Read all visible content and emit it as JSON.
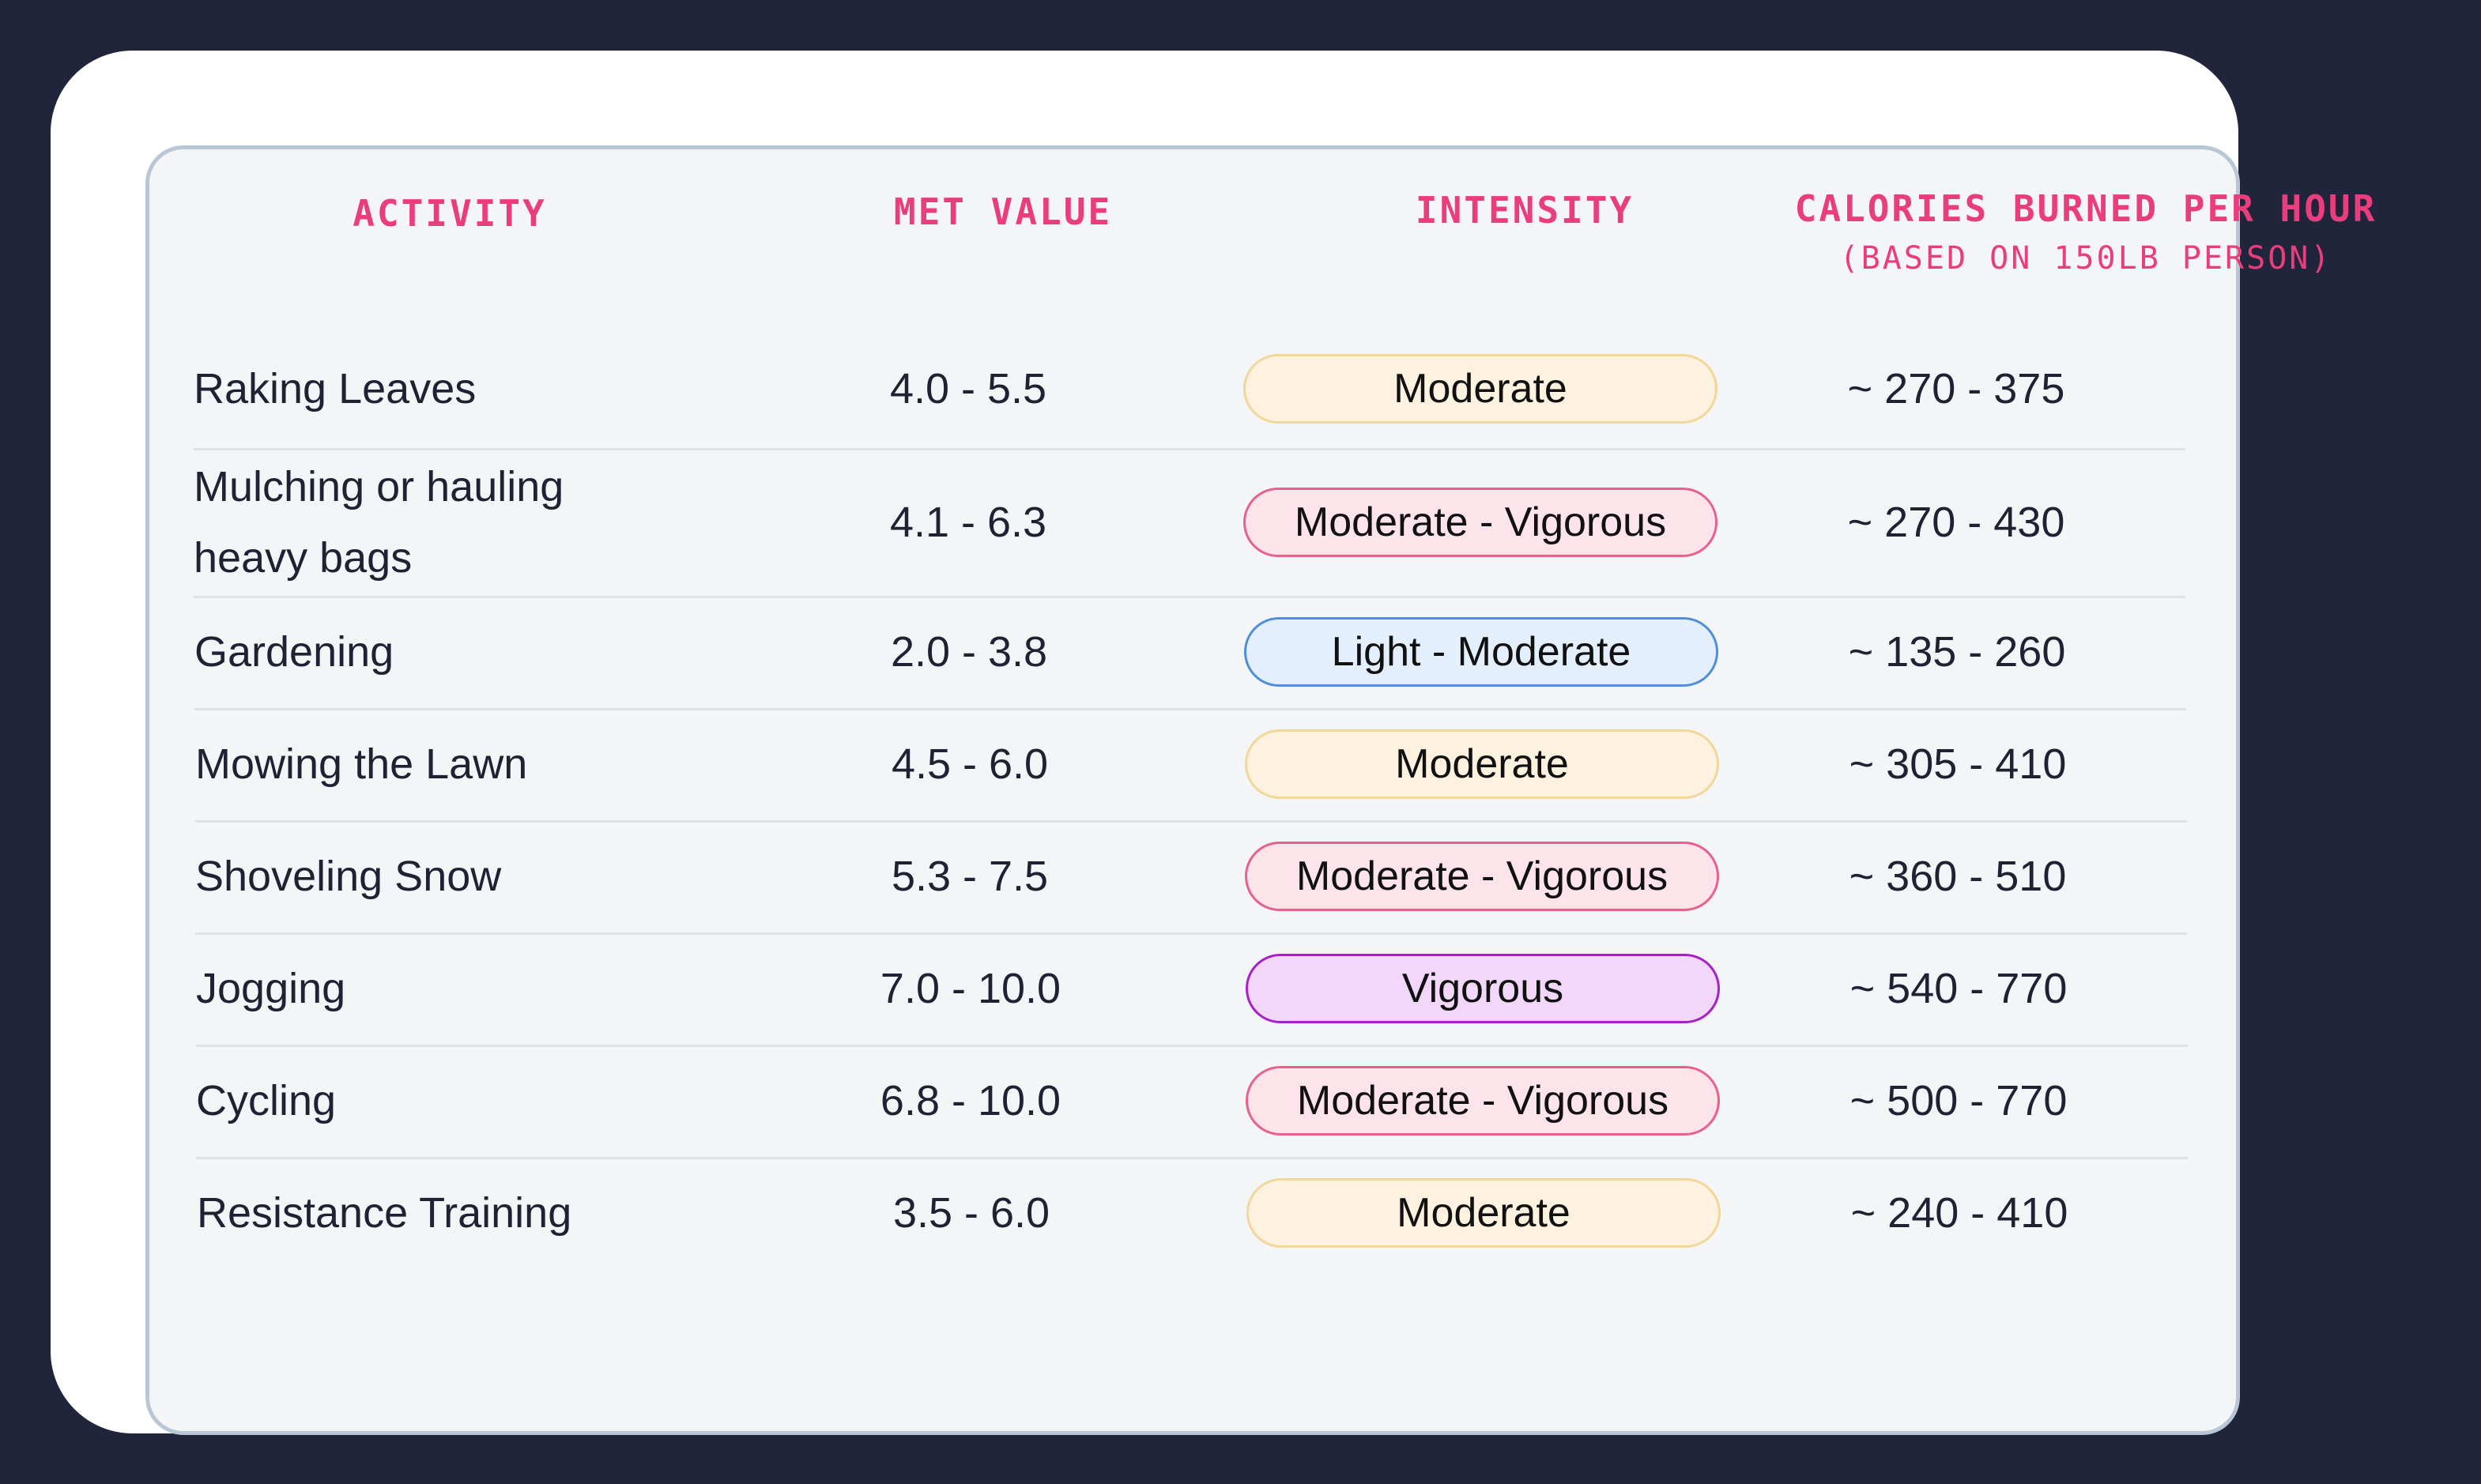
{
  "table": {
    "headers": {
      "activity": "ACTIVITY",
      "met_value": "MET VALUE",
      "intensity": "INTENSITY",
      "calories": "CALORIES BURNED PER HOUR",
      "calories_note": "(BASED ON 150LB PERSON)"
    },
    "rows": [
      {
        "activity": "Raking Leaves",
        "met": "4.0 - 5.5",
        "intensity": "Moderate",
        "level": "moderate",
        "calories": "~ 270 - 375"
      },
      {
        "activity": "Mulching or hauling heavy bags",
        "met": "4.1 - 6.3",
        "intensity": "Moderate - Vigorous",
        "level": "moderate-vigorous",
        "calories": "~ 270 - 430"
      },
      {
        "activity": "Gardening",
        "met": "2.0 - 3.8",
        "intensity": "Light - Moderate",
        "level": "light-moderate",
        "calories": "~ 135 - 260"
      },
      {
        "activity": "Mowing the Lawn",
        "met": "4.5 - 6.0",
        "intensity": "Moderate",
        "level": "moderate",
        "calories": "~ 305 - 410"
      },
      {
        "activity": "Shoveling Snow",
        "met": "5.3 - 7.5",
        "intensity": "Moderate - Vigorous",
        "level": "moderate-vigorous",
        "calories": "~ 360 - 510"
      },
      {
        "activity": "Jogging",
        "met": "7.0 - 10.0",
        "intensity": "Vigorous",
        "level": "vigorous",
        "calories": "~ 540 - 770"
      },
      {
        "activity": "Cycling",
        "met": "6.8 - 10.0",
        "intensity": "Moderate - Vigorous",
        "level": "moderate-vigorous",
        "calories": "~ 500 - 770"
      },
      {
        "activity": "Resistance Training",
        "met": "3.5 - 6.0",
        "intensity": "Moderate",
        "level": "moderate",
        "calories": "~ 240 - 410"
      }
    ]
  },
  "colors": {
    "background": "#20253c",
    "header_text": "#ea3d7d",
    "moderate": {
      "fill": "#fdf1e0",
      "border": "#f2d79a"
    },
    "moderate-vigorous": {
      "fill": "#fde3ea",
      "border": "#e8608c"
    },
    "light-moderate": {
      "fill": "#e4effd",
      "border": "#4f8fd8"
    },
    "vigorous": {
      "fill": "#f2d7fa",
      "border": "#a621c6"
    }
  }
}
